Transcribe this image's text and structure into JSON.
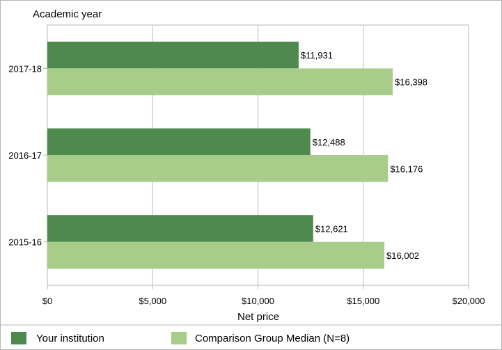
{
  "chart_data": {
    "type": "bar",
    "orientation": "horizontal",
    "y_axis_title": "Academic year",
    "xlabel": "Net price",
    "categories": [
      "2017-18",
      "2016-17",
      "2015-16"
    ],
    "series": [
      {
        "name": "Your institution",
        "values": [
          11931,
          12488,
          12621
        ],
        "labels": [
          "$11,931",
          "$12,488",
          "$12,621"
        ],
        "color": "#4e8a4d"
      },
      {
        "name": "Comparison Group Median (N=8)",
        "values": [
          16398,
          16176,
          16002
        ],
        "labels": [
          "$16,398",
          "$16,176",
          "$16,002"
        ],
        "color": "#a8cd8b"
      }
    ],
    "xlim": [
      0,
      20000
    ],
    "x_ticks": [
      0,
      5000,
      10000,
      15000,
      20000
    ],
    "x_tick_labels": [
      "$0",
      "$5,000",
      "$10,000",
      "$15,000",
      "$20,000"
    ],
    "grid": true,
    "legend_position": "bottom"
  }
}
